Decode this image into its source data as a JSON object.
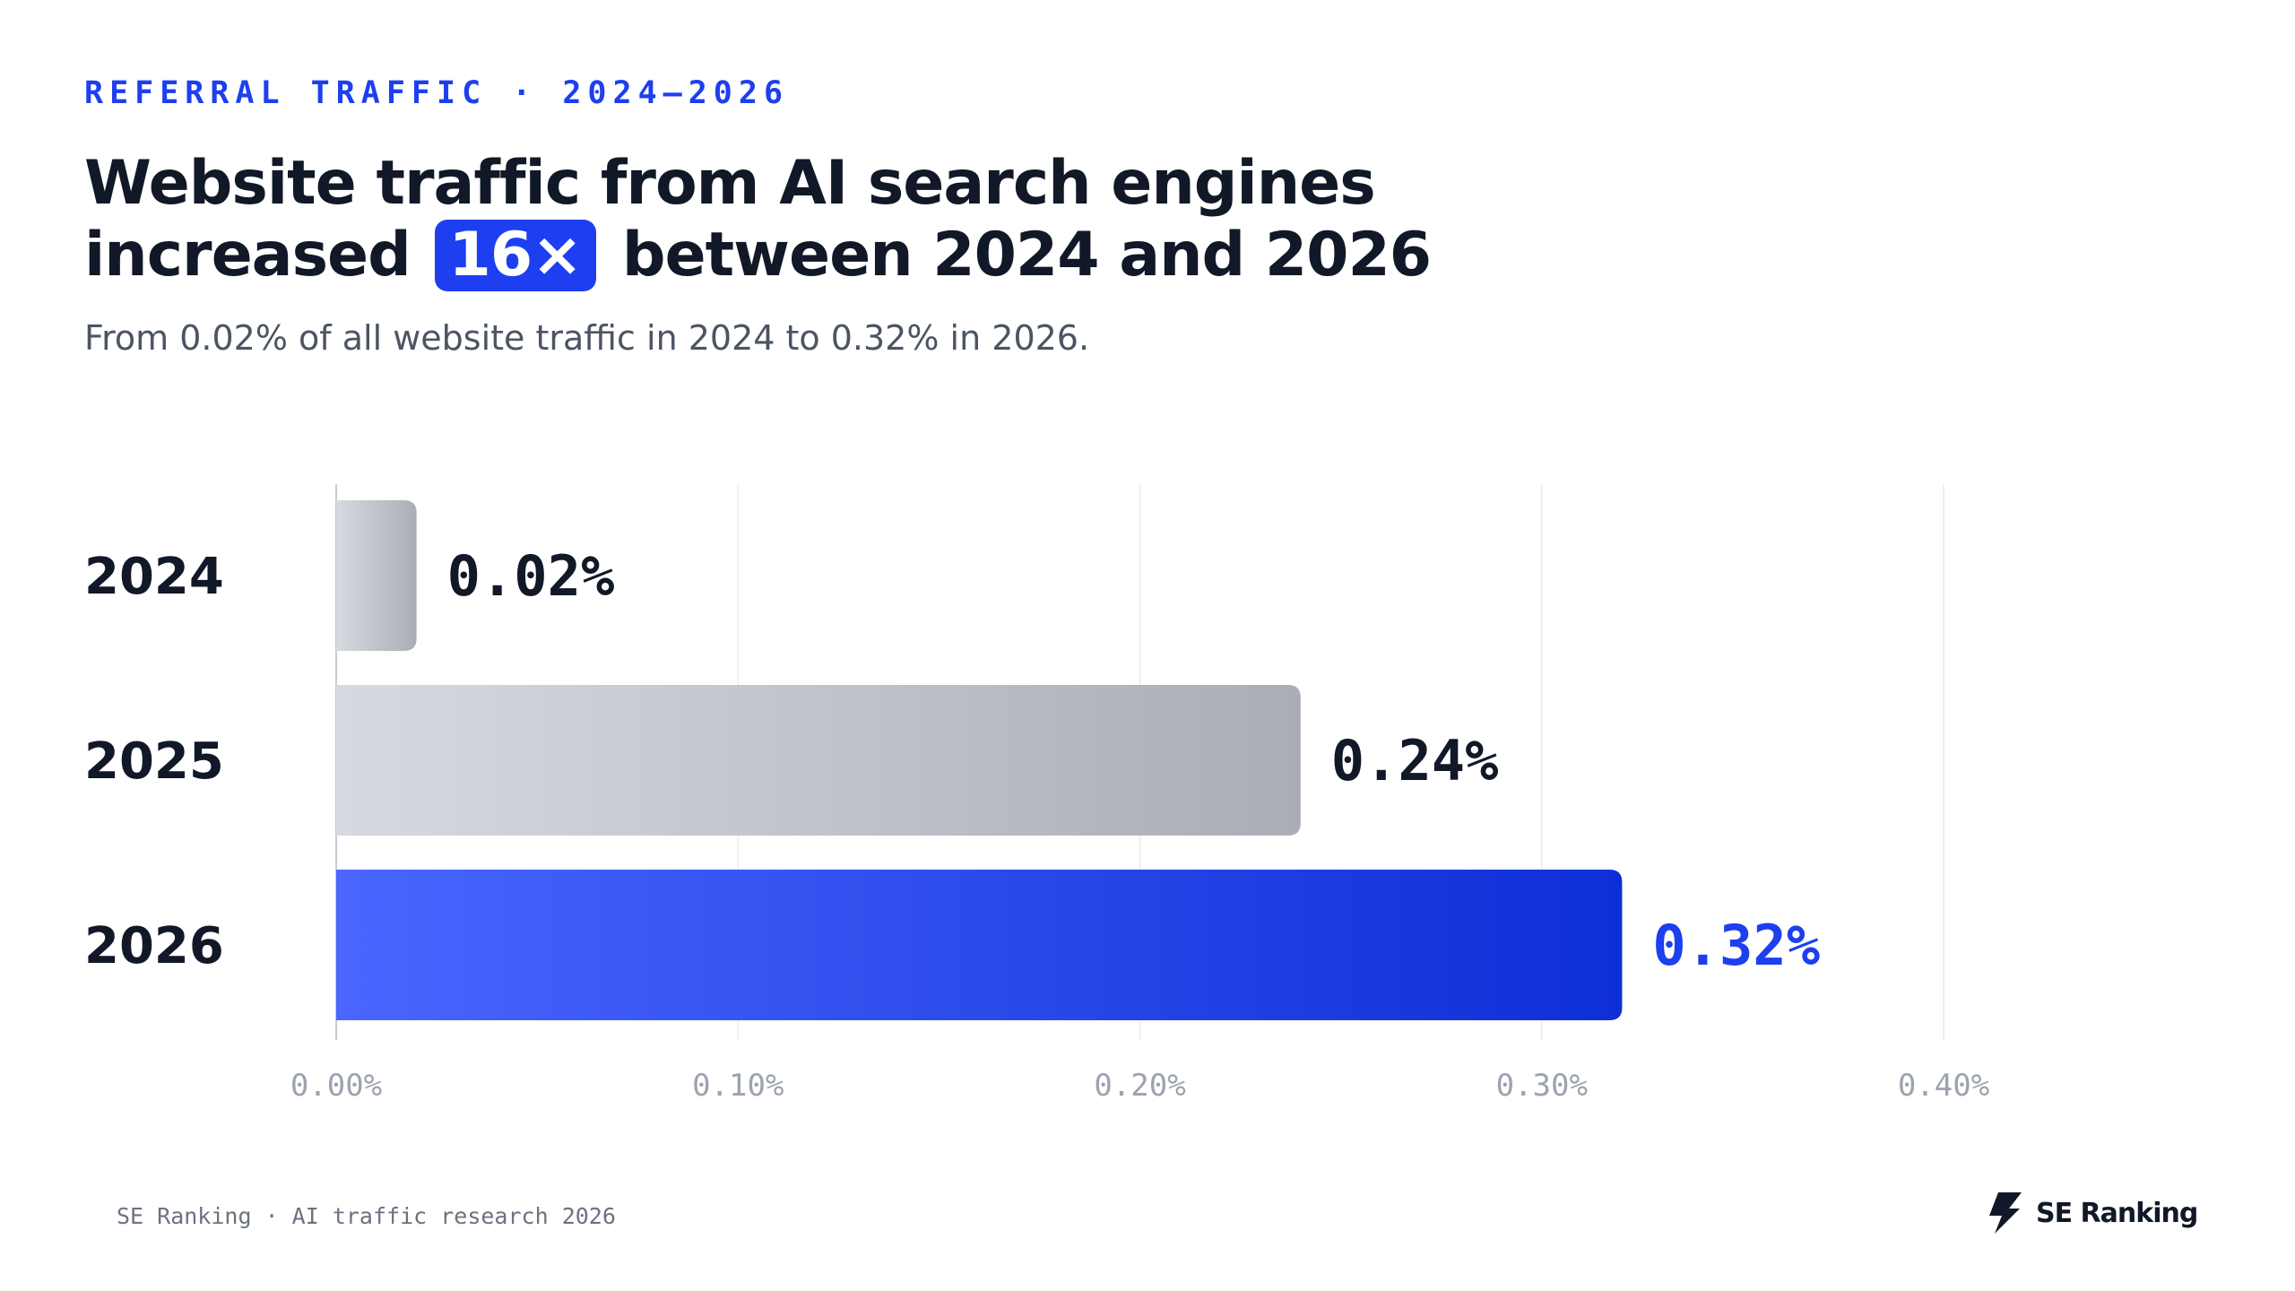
{
  "eyebrow": "REFERRAL TRAFFIC · 2024–2026",
  "headline": {
    "line1": "Website traffic from AI search engines",
    "line2_before": "increased",
    "highlight": "16×",
    "line2_after": "between 2024 and 2026"
  },
  "subtitle": "From 0.02% of all website traffic in 2024 to 0.32% in 2026.",
  "colors": {
    "accent": "#1d3ff0",
    "bar_grey_start": "#d6dae0",
    "bar_grey_end": "#a9aeb5",
    "bar_blue_start": "#4a66ff",
    "bar_blue_end": "#0d2fd6"
  },
  "chart_data": {
    "type": "bar",
    "orientation": "horizontal",
    "categories": [
      "2024",
      "2025",
      "2026"
    ],
    "values": [
      0.02,
      0.24,
      0.32
    ],
    "value_labels": [
      "0.02%",
      "0.24%",
      "0.32%"
    ],
    "highlighted_category": "2026",
    "xlim": [
      0,
      0.4
    ],
    "x_ticks": [
      0,
      0.1,
      0.2,
      0.3,
      0.4
    ],
    "x_tick_labels": [
      "0.00%",
      "0.10%",
      "0.20%",
      "0.30%",
      "0.40%"
    ],
    "grid": true,
    "legend": "none"
  },
  "footer": {
    "note": "SE Ranking · AI traffic research 2026",
    "brand_icon": "se-ranking-bolt-icon",
    "brand_name": "SE Ranking"
  }
}
